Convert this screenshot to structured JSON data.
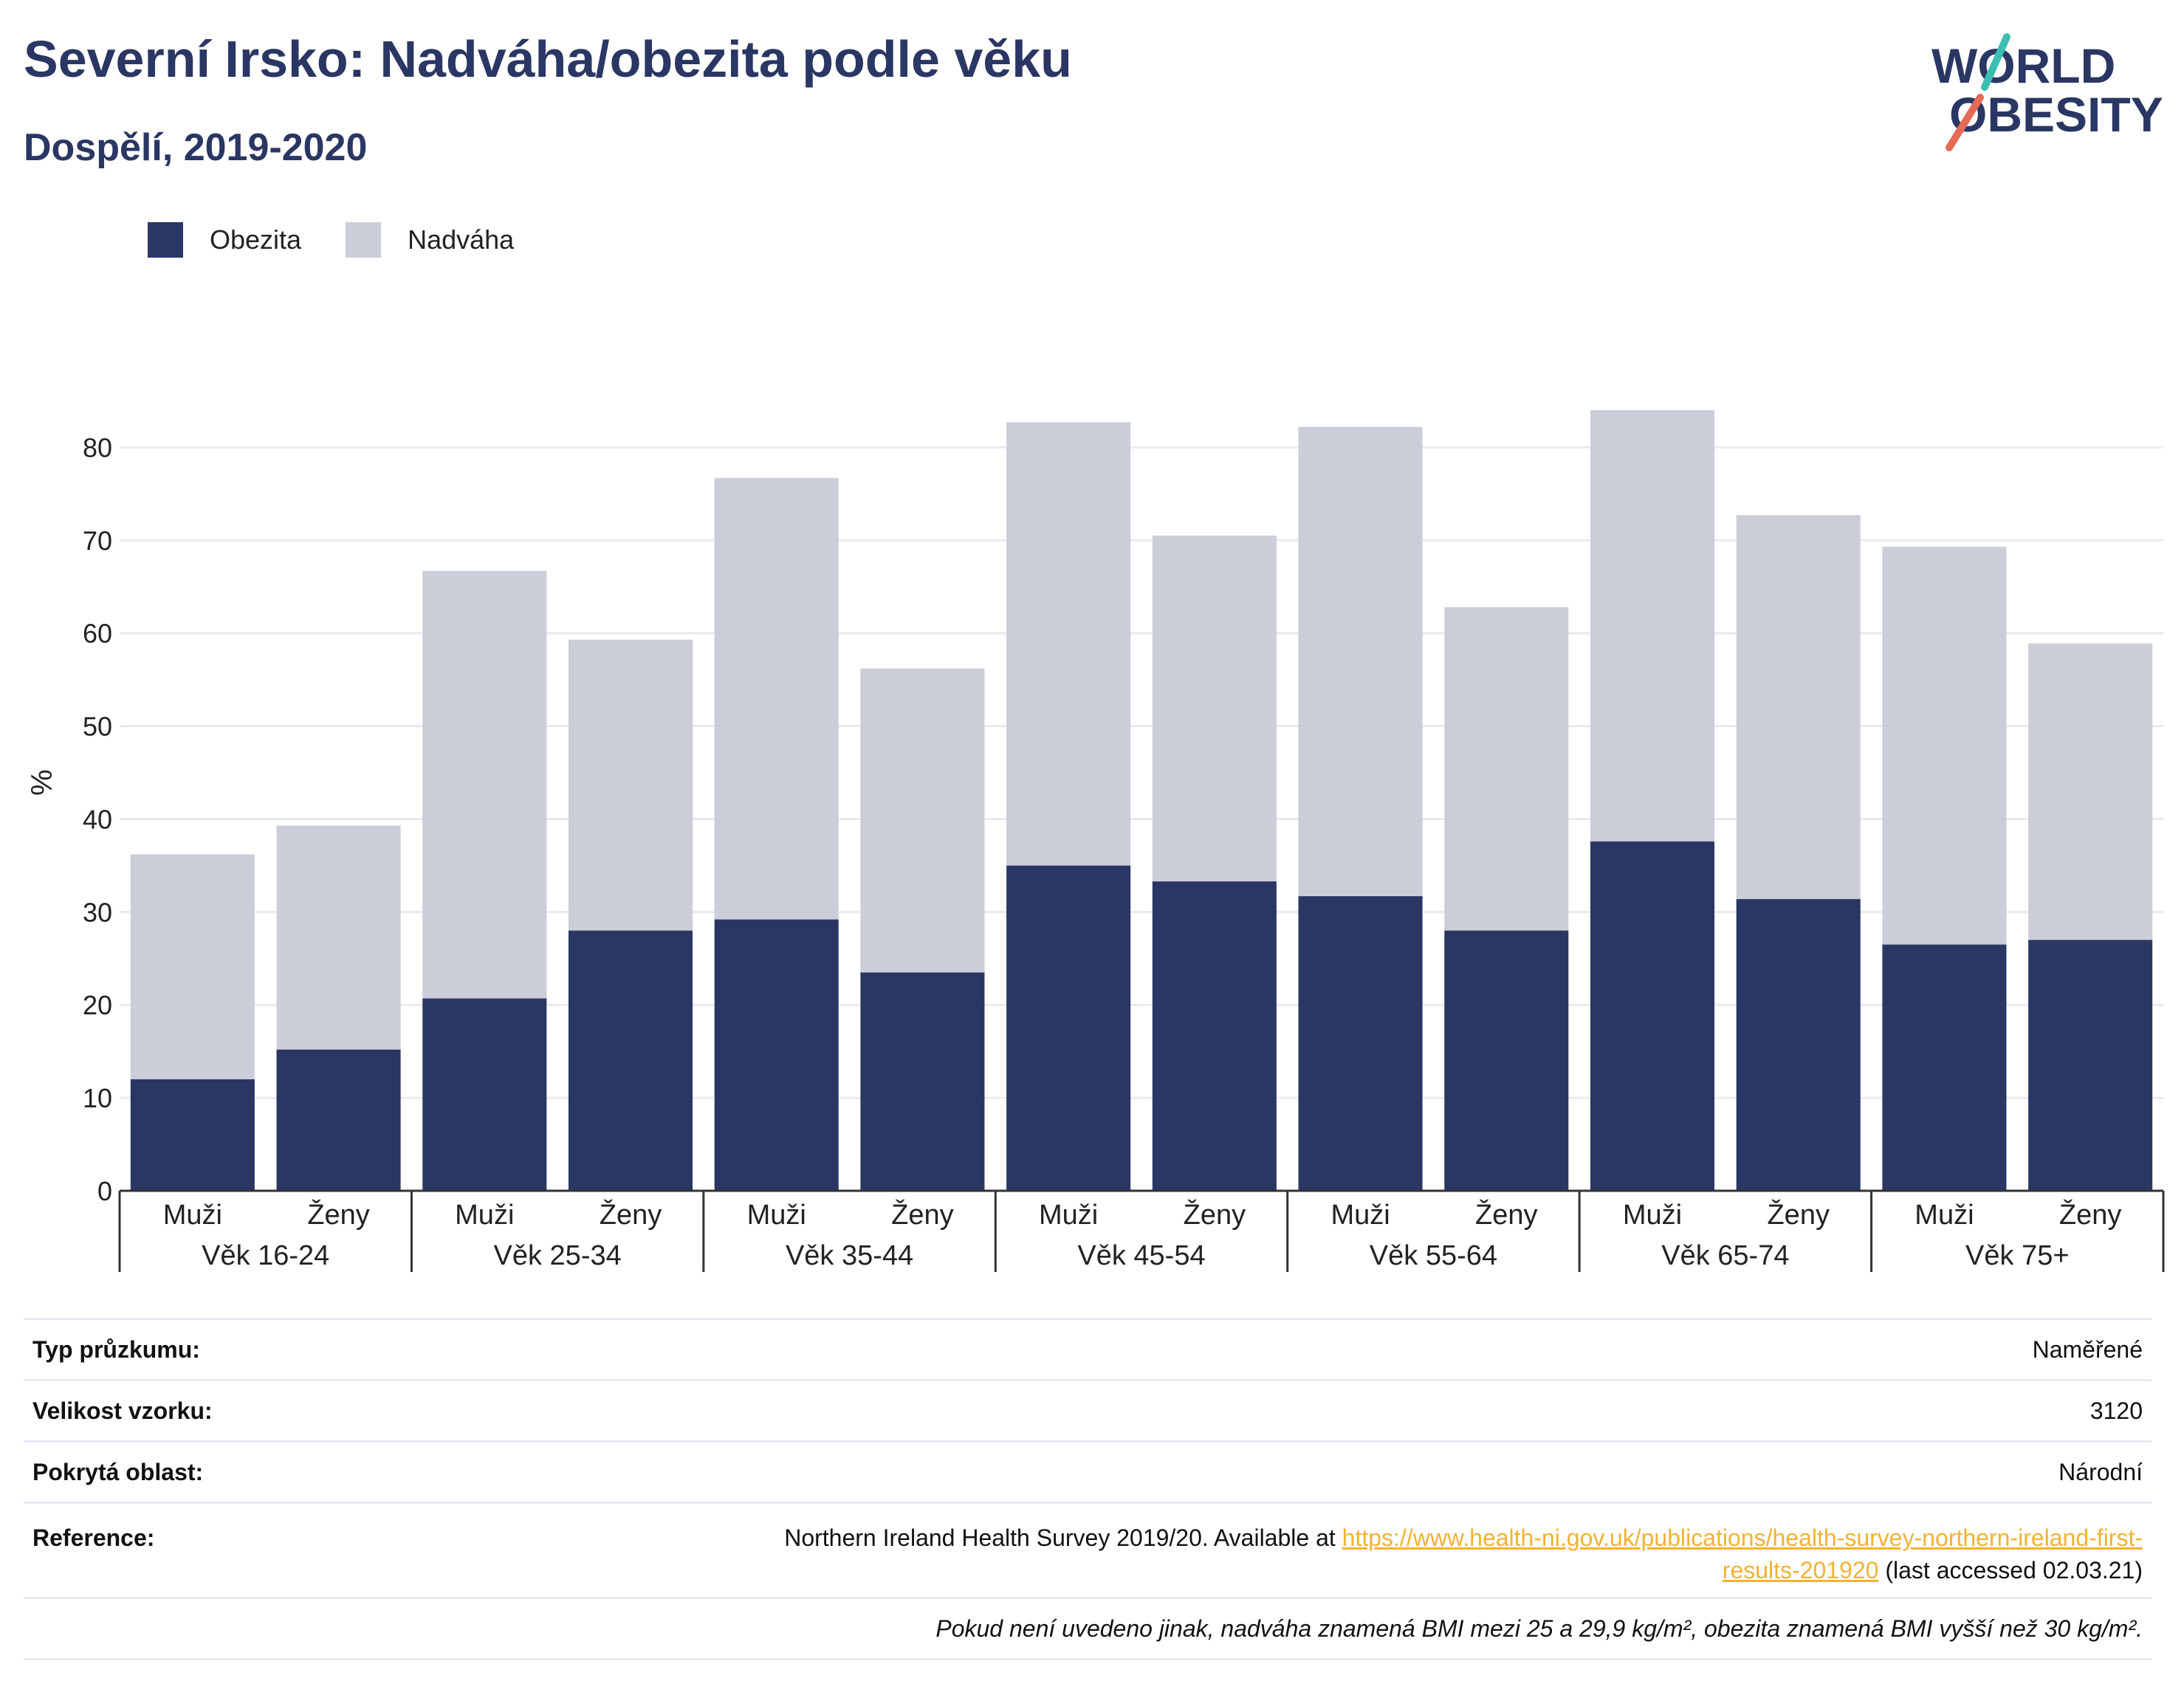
{
  "header": {
    "title": "Severní Irsko: Nadváha/obezita podle věku",
    "subtitle": "Dospělí, 2019-2020"
  },
  "logo": {
    "line1": "WORLD",
    "line2": "OBESITY"
  },
  "legend": [
    {
      "label": "Obezita",
      "color": "#2a3663"
    },
    {
      "label": "Nadváha",
      "color": "#cbcdd8"
    }
  ],
  "chart_data": {
    "type": "bar",
    "stacked": true,
    "groups": [
      "Věk 16-24",
      "Věk 25-34",
      "Věk 35-44",
      "Věk 45-54",
      "Věk 55-64",
      "Věk 65-74",
      "Věk 75+"
    ],
    "categories": [
      "Muži",
      "Ženy",
      "Muži",
      "Ženy",
      "Muži",
      "Ženy",
      "Muži",
      "Ženy",
      "Muži",
      "Ženy",
      "Muži",
      "Ženy",
      "Muži",
      "Ženy"
    ],
    "series": [
      {
        "name": "Obezita",
        "color": "#2a3663",
        "values": [
          12,
          15.2,
          20.7,
          28,
          29.2,
          23.5,
          35,
          33.3,
          31.7,
          28,
          37.6,
          31.4,
          26.5,
          27
        ]
      },
      {
        "name": "Nadváha",
        "color": "#cbcdd8",
        "values": [
          24.2,
          24.1,
          46,
          31.3,
          47.5,
          32.7,
          47.7,
          37.2,
          50.5,
          34.8,
          46.4,
          41.3,
          42.8,
          31.9
        ]
      }
    ],
    "ylabel": "%",
    "ylim": [
      0,
      85
    ],
    "yticks": [
      0,
      10,
      20,
      30,
      40,
      50,
      60,
      70,
      80
    ],
    "grid": true,
    "legend_position": "top-left"
  },
  "info": {
    "survey_type_label": "Typ průzkumu:",
    "survey_type_value": "Naměřené",
    "sample_size_label": "Velikost vzorku:",
    "sample_size_value": "3120",
    "coverage_label": "Pokrytá oblast:",
    "coverage_value": "Národní",
    "reference_label": "Reference:",
    "reference_text": "Northern Ireland Health Survey 2019/20. Available at ",
    "reference_link_1": "https://www.health-ni.gov.uk/publications/health-survey-northern-ireland-first-",
    "reference_link_2": "results-201920",
    "reference_suffix": " (last accessed 02.03.21)",
    "note": "Pokud není uvedeno jinak, nadváha znamená BMI mezi 25 a 29,9 kg/m², obezita znamená BMI vyšší než 30 kg/m²."
  }
}
